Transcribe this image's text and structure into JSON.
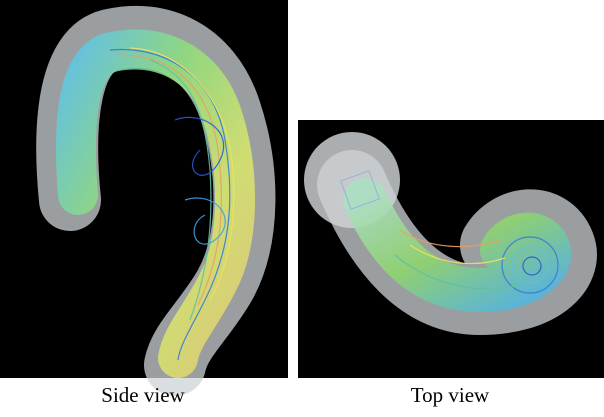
{
  "panels": [
    {
      "caption": "Side view"
    },
    {
      "caption": "Top view"
    }
  ]
}
